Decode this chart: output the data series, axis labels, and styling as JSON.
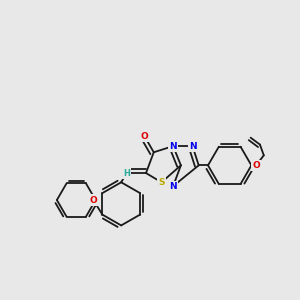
{
  "background_color": "#e8e8e8",
  "bond_color": "#1a1a1a",
  "atom_colors": {
    "O": "#dd0000",
    "N": "#0000ee",
    "S": "#bbaa00",
    "H": "#2aaa99",
    "C": "#1a1a1a"
  },
  "figsize": [
    3.0,
    3.0
  ],
  "dpi": 100
}
